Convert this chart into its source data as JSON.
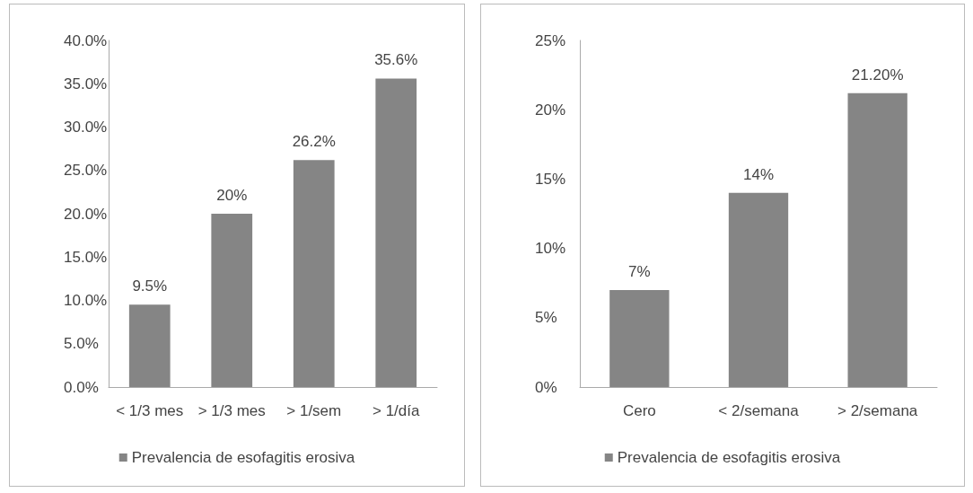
{
  "chart_data": [
    {
      "type": "bar",
      "categories": [
        "< 1/3 mes",
        "> 1/3 mes",
        "> 1/sem",
        "> 1/día"
      ],
      "series": [
        {
          "name": "Prevalencia de esofagitis erosiva",
          "color": "#858585",
          "values": [
            9.5,
            20,
            26.2,
            35.6
          ],
          "value_labels": [
            "9.5%",
            "20%",
            "26.2%",
            "35.6%"
          ]
        }
      ],
      "ylim": [
        0,
        40
      ],
      "yticks": [
        {
          "value": 0,
          "label": "0.0%"
        },
        {
          "value": 5,
          "label": "5.0%"
        },
        {
          "value": 10,
          "label": "10.0%"
        },
        {
          "value": 15,
          "label": "15.0%"
        },
        {
          "value": 20,
          "label": "20.0%"
        },
        {
          "value": 25,
          "label": "25.0%"
        },
        {
          "value": 30,
          "label": "30.0%"
        },
        {
          "value": 35,
          "label": "35.0%"
        },
        {
          "value": 40,
          "label": "40.0%"
        }
      ],
      "legend": "bottom",
      "grid": false
    },
    {
      "type": "bar",
      "categories": [
        "Cero",
        "< 2/semana",
        "> 2/semana"
      ],
      "series": [
        {
          "name": "Prevalencia de esofagitis erosiva",
          "color": "#858585",
          "values": [
            7,
            14,
            21.2
          ],
          "value_labels": [
            "7%",
            "14%",
            "21.20%"
          ]
        }
      ],
      "ylim": [
        0,
        25
      ],
      "yticks": [
        {
          "value": 0,
          "label": "0%"
        },
        {
          "value": 5,
          "label": "5%"
        },
        {
          "value": 10,
          "label": "10%"
        },
        {
          "value": 15,
          "label": "15%"
        },
        {
          "value": 20,
          "label": "20%"
        },
        {
          "value": 25,
          "label": "25%"
        }
      ],
      "legend": "bottom",
      "grid": false
    }
  ]
}
